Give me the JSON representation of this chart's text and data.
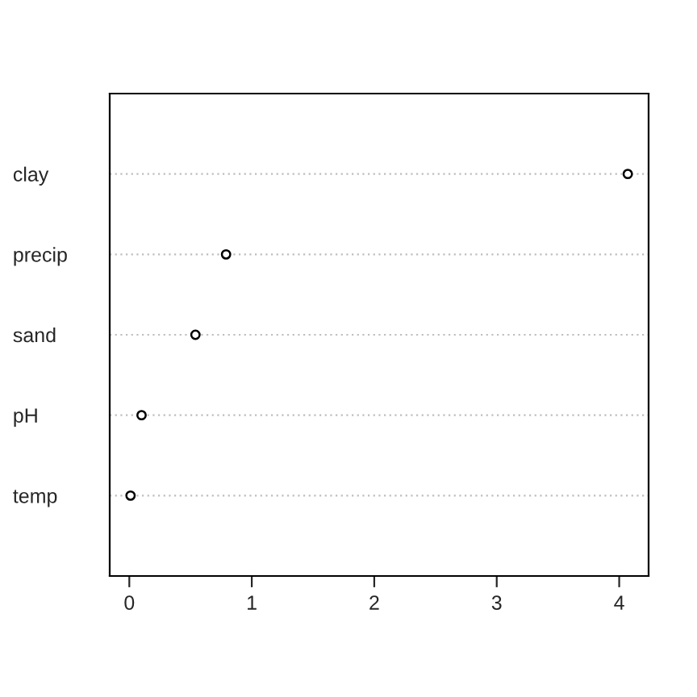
{
  "chart_data": {
    "type": "scatter",
    "orientation": "horizontal",
    "categories": [
      "clay",
      "precip",
      "sand",
      "pH",
      "temp"
    ],
    "values": [
      4.07,
      0.79,
      0.54,
      0.1,
      0.01
    ],
    "color": "#000000",
    "marker": "circle",
    "grid": "y",
    "xlim": [
      -0.16,
      4.24
    ],
    "xticks": [
      0,
      1,
      2,
      3,
      4
    ]
  }
}
